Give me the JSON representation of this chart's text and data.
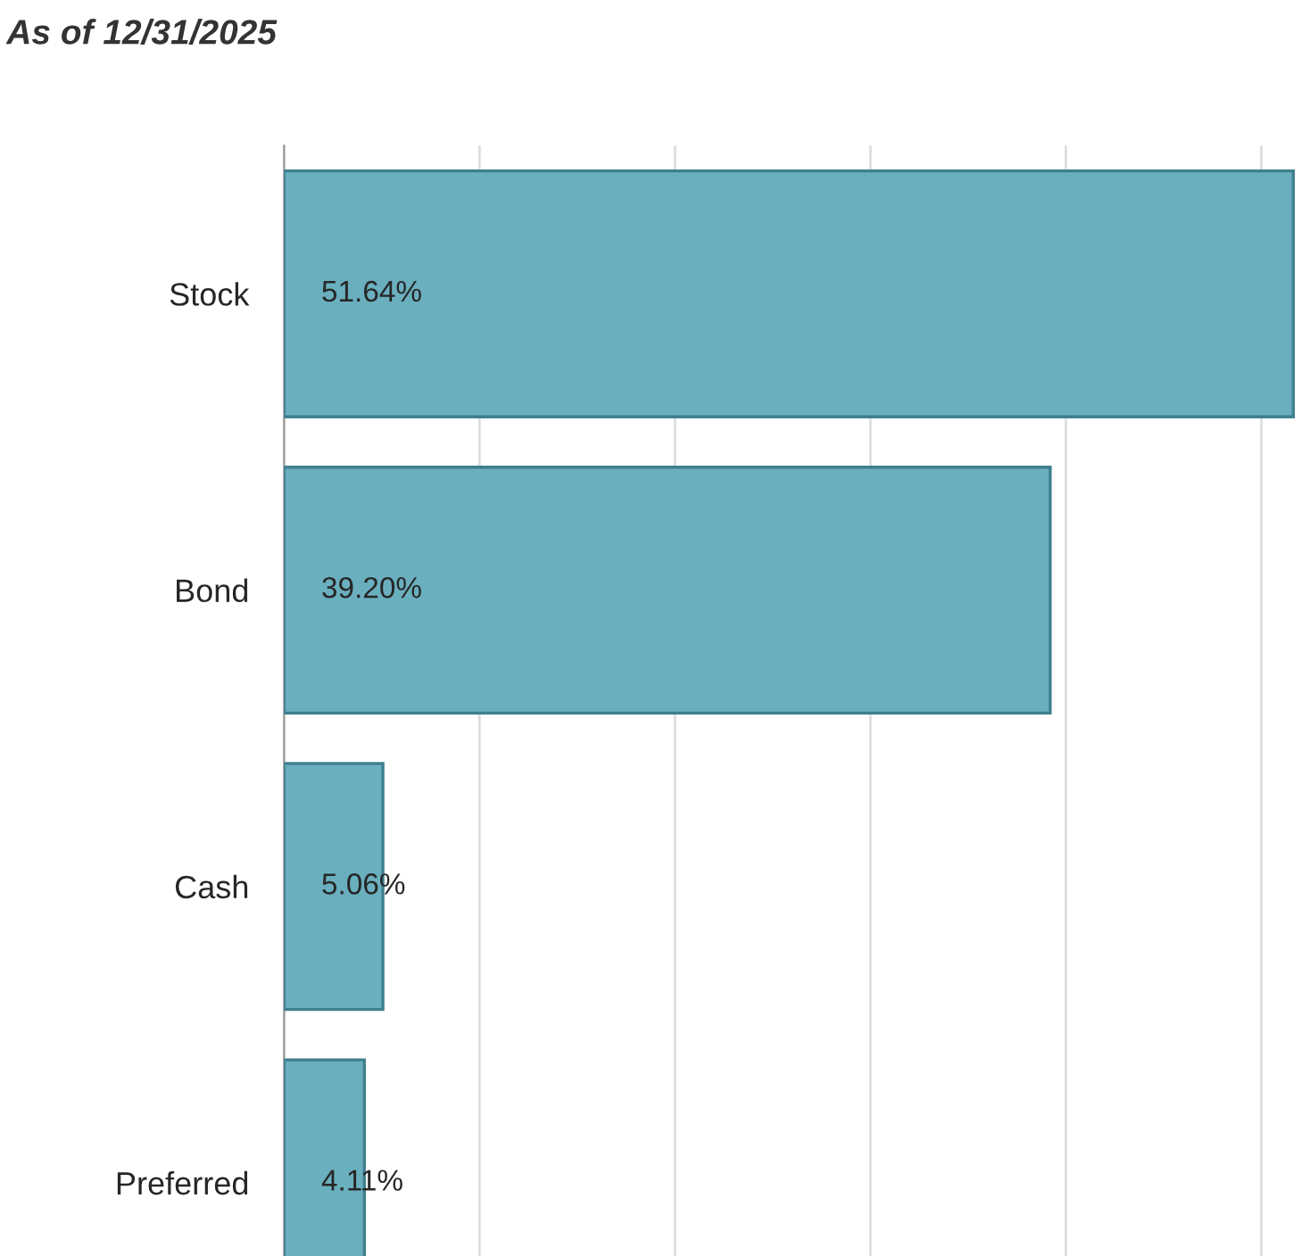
{
  "chart_data": {
    "type": "bar",
    "orientation": "horizontal",
    "title": "As of 12/31/2025",
    "categories": [
      "Stock",
      "Bond",
      "Cash",
      "Preferred"
    ],
    "values": [
      51.64,
      39.2,
      5.06,
      4.11
    ],
    "value_labels": [
      "51.64%",
      "39.20%",
      "5.06%",
      "4.11%"
    ],
    "color": "#6aafbe",
    "xlim": [
      0,
      52
    ],
    "xticks": [
      {
        "value": 0,
        "label": null
      },
      {
        "value": 10,
        "label": null
      },
      {
        "value": 20,
        "label": null
      },
      {
        "value": 30,
        "label": null
      },
      {
        "value": 40,
        "label": null
      },
      {
        "value": 50,
        "label": null
      }
    ],
    "grid": "x",
    "tick_labels": "y",
    "legend": false
  }
}
